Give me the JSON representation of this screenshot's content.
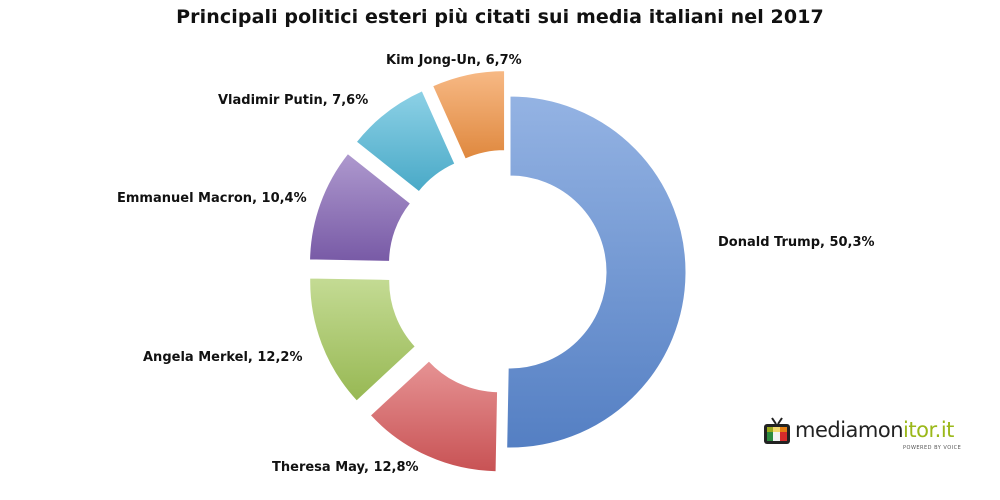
{
  "chart_data": {
    "type": "pie",
    "variant": "exploded-donut",
    "title": "Principali politici esteri più citati sui media italiani nel 2017",
    "slices": [
      {
        "name": "Donald Trump",
        "value": 50.3,
        "label": "Donald Trump, 50,3%",
        "color": "#5b8ad4"
      },
      {
        "name": "Theresa May",
        "value": 12.8,
        "label": "Theresa May, 12,8%",
        "color": "#d9595b"
      },
      {
        "name": "Angela Merkel",
        "value": 12.2,
        "label": "Angela Merkel, 12,2%",
        "color": "#a4c85a"
      },
      {
        "name": "Emmanuel Macron",
        "value": 10.4,
        "label": "Emmanuel Macron, 10,4%",
        "color": "#8262b4"
      },
      {
        "name": "Vladimir Putin",
        "value": 7.6,
        "label": "Vladimir Putin, 7,6%",
        "color": "#4fb8d8"
      },
      {
        "name": "Kim Jong-Un",
        "value": 6.7,
        "label": "Kim Jong-Un, 6,7%",
        "color": "#f29443"
      }
    ]
  },
  "logo": {
    "brand_part1": "mediamon",
    "brand_part2": "itor.it",
    "tagline": "POWERED BY VOICE",
    "icon": "tv-icon"
  }
}
